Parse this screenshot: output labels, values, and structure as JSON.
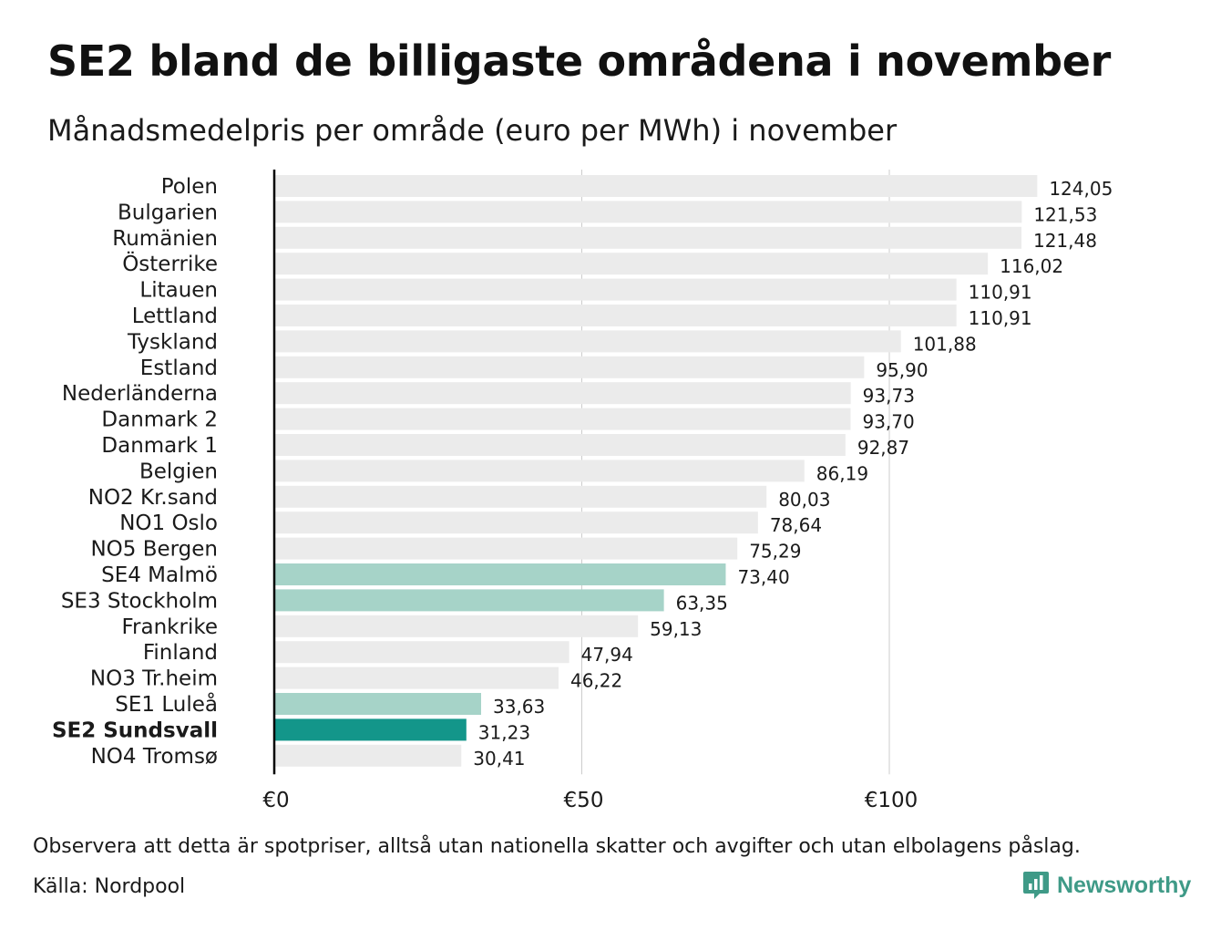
{
  "title": "SE2 bland de billigaste områdena i november",
  "subtitle": "Månadsmedelpris per område (euro per MWh) i november",
  "footer": {
    "note": "Observera att detta är spotpriser, alltså utan nationella skatter och avgifter och utan elbolagens påslag.",
    "source": "Källa: Nordpool",
    "brand": "Newsworthy",
    "brand_icon": "bar-chart-logo-icon"
  },
  "colors": {
    "default_bar": "#ebebeb",
    "se_bar": "#a6d3c8",
    "highlight_bar": "#13968a",
    "brand": "#3f9a87",
    "axis": "#000000",
    "grid": "#cccccc"
  },
  "chart_data": {
    "type": "bar",
    "orientation": "horizontal",
    "title": "SE2 bland de billigaste områdena i november",
    "subtitle": "Månadsmedelpris per område (euro per MWh) i november",
    "xlabel": "",
    "ylabel": "",
    "xlim": [
      0,
      134
    ],
    "xticks": [
      0,
      50,
      100
    ],
    "xtick_labels": [
      "€0",
      "€50",
      "€100"
    ],
    "grid": true,
    "categories": [
      "Polen",
      "Bulgarien",
      "Rumänien",
      "Österrike",
      "Litauen",
      "Lettland",
      "Tyskland",
      "Estland",
      "Nederländerna",
      "Danmark 2",
      "Danmark 1",
      "Belgien",
      "NO2 Kr.sand",
      "NO1 Oslo",
      "NO5 Bergen",
      "SE4 Malmö",
      "SE3 Stockholm",
      "Frankrike",
      "Finland",
      "NO3 Tr.heim",
      "SE1 Luleå",
      "SE2 Sundsvall",
      "NO4 Tromsø"
    ],
    "values": [
      124.05,
      121.53,
      121.48,
      116.02,
      110.91,
      110.91,
      101.88,
      95.9,
      93.73,
      93.7,
      92.87,
      86.19,
      80.03,
      78.64,
      75.29,
      73.4,
      63.35,
      59.13,
      47.94,
      46.22,
      33.63,
      31.23,
      30.41
    ],
    "value_labels": [
      "124,05",
      "121,53",
      "121,48",
      "116,02",
      "110,91",
      "110,91",
      "101,88",
      "95,90",
      "93,73",
      "93,70",
      "92,87",
      "86,19",
      "80,03",
      "78,64",
      "75,29",
      "73,40",
      "63,35",
      "59,13",
      "47,94",
      "46,22",
      "33,63",
      "31,23",
      "30,41"
    ],
    "bar_style": [
      "default",
      "default",
      "default",
      "default",
      "default",
      "default",
      "default",
      "default",
      "default",
      "default",
      "default",
      "default",
      "default",
      "default",
      "default",
      "se",
      "se",
      "default",
      "default",
      "default",
      "se",
      "highlight",
      "default"
    ]
  }
}
